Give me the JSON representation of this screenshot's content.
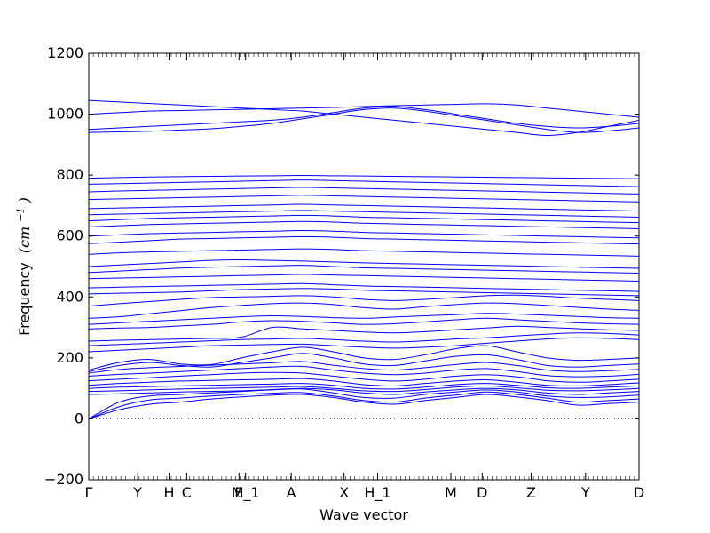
{
  "chart_data": {
    "type": "line",
    "title": "",
    "xlabel": "Wave vector",
    "ylabel": "Frequency",
    "ylabel_unit": "(cm",
    "ylabel_unit_exp": "−1",
    "ylabel_unit_close": ")",
    "ylim": [
      -200,
      1200
    ],
    "yticks": [
      -200,
      0,
      200,
      400,
      600,
      800,
      1000,
      1200
    ],
    "xlim": [
      0,
      1
    ],
    "grid": false,
    "legend": "none",
    "line_color": "#0000ff",
    "zero_line_color": "#000000",
    "high_symmetry_points": [
      {
        "label": "Γ",
        "x": 0.0
      },
      {
        "label": "Y",
        "x": 0.089
      },
      {
        "label": "H",
        "x": 0.146
      },
      {
        "label": "C",
        "x": 0.178
      },
      {
        "label": "E",
        "x": 0.273
      },
      {
        "label": "M_1",
        "x": 0.285
      },
      {
        "label": "A",
        "x": 0.368
      },
      {
        "label": "X",
        "x": 0.464
      },
      {
        "label": "H_1",
        "x": 0.525
      },
      {
        "label": "M",
        "x": 0.658
      },
      {
        "label": "D",
        "x": 0.715
      },
      {
        "label": "Z",
        "x": 0.804
      },
      {
        "label": "Y",
        "x": 0.903
      },
      {
        "label": "D",
        "x": 1.0
      }
    ],
    "series": [
      {
        "values": [
          0,
          30,
          48,
          55,
          65,
          72,
          78,
          80,
          70,
          55,
          48,
          60,
          70,
          80,
          72,
          60,
          45,
          50,
          55
        ]
      },
      {
        "values": [
          0,
          40,
          62,
          68,
          75,
          80,
          84,
          86,
          75,
          60,
          55,
          68,
          78,
          88,
          80,
          68,
          55,
          60,
          65
        ]
      },
      {
        "values": [
          0,
          55,
          75,
          80,
          85,
          90,
          95,
          98,
          85,
          70,
          68,
          80,
          88,
          95,
          88,
          75,
          70,
          72,
          78
        ]
      },
      {
        "values": [
          80,
          82,
          85,
          88,
          90,
          92,
          96,
          100,
          95,
          85,
          80,
          88,
          95,
          100,
          95,
          85,
          80,
          85,
          90
        ]
      },
      {
        "values": [
          90,
          92,
          95,
          98,
          100,
          102,
          104,
          106,
          100,
          92,
          90,
          96,
          104,
          108,
          102,
          94,
          92,
          95,
          100
        ]
      },
      {
        "values": [
          100,
          104,
          106,
          108,
          110,
          112,
          114,
          116,
          110,
          100,
          98,
          104,
          112,
          116,
          110,
          102,
          100,
          104,
          108
        ]
      },
      {
        "values": [
          110,
          116,
          120,
          124,
          126,
          128,
          130,
          132,
          124,
          112,
          108,
          116,
          124,
          128,
          120,
          110,
          108,
          112,
          118
        ]
      },
      {
        "values": [
          125,
          130,
          135,
          140,
          145,
          150,
          152,
          150,
          140,
          130,
          124,
          130,
          140,
          145,
          138,
          125,
          120,
          124,
          130
        ]
      },
      {
        "values": [
          140,
          146,
          150,
          155,
          160,
          165,
          170,
          172,
          160,
          150,
          145,
          150,
          160,
          165,
          155,
          142,
          138,
          140,
          146
        ]
      },
      {
        "values": [
          150,
          162,
          168,
          172,
          176,
          180,
          184,
          188,
          176,
          165,
          160,
          168,
          178,
          185,
          175,
          160,
          155,
          158,
          162
        ]
      },
      {
        "values": [
          155,
          175,
          185,
          175,
          170,
          185,
          200,
          215,
          200,
          180,
          175,
          190,
          205,
          210,
          195,
          175,
          170,
          175,
          180
        ]
      },
      {
        "values": [
          160,
          185,
          195,
          180,
          178,
          200,
          220,
          235,
          220,
          200,
          195,
          210,
          230,
          240,
          220,
          200,
          192,
          195,
          200
        ]
      },
      {
        "values": [
          220,
          225,
          230,
          235,
          240,
          242,
          244,
          245,
          240,
          235,
          232,
          235,
          240,
          248,
          255,
          262,
          266,
          264,
          260
        ]
      },
      {
        "values": [
          240,
          244,
          248,
          252,
          256,
          260,
          262,
          264,
          260,
          255,
          252,
          256,
          262,
          266,
          272,
          278,
          282,
          280,
          275
        ]
      },
      {
        "values": [
          255,
          258,
          260,
          262,
          264,
          268,
          300,
          295,
          290,
          285,
          282,
          286,
          292,
          298,
          304,
          300,
          296,
          292,
          290
        ]
      },
      {
        "values": [
          295,
          298,
          300,
          305,
          310,
          318,
          322,
          320,
          315,
          310,
          312,
          318,
          325,
          330,
          325,
          320,
          315,
          312,
          310
        ]
      },
      {
        "values": [
          310,
          315,
          320,
          325,
          330,
          335,
          338,
          336,
          332,
          330,
          334,
          338,
          342,
          346,
          344,
          340,
          336,
          332,
          330
        ]
      },
      {
        "values": [
          330,
          335,
          345,
          355,
          365,
          372,
          378,
          380,
          375,
          365,
          360,
          368,
          375,
          380,
          378,
          372,
          366,
          360,
          356
        ]
      },
      {
        "values": [
          370,
          378,
          385,
          392,
          398,
          400,
          402,
          404,
          400,
          392,
          388,
          392,
          398,
          404,
          406,
          402,
          396,
          392,
          388
        ]
      },
      {
        "values": [
          410,
          412,
          414,
          416,
          420,
          424,
          426,
          428,
          426,
          422,
          420,
          418,
          416,
          414,
          412,
          410,
          408,
          406,
          404
        ]
      },
      {
        "values": [
          430,
          432,
          434,
          436,
          438,
          440,
          442,
          444,
          440,
          436,
          434,
          432,
          430,
          428,
          426,
          424,
          422,
          420,
          418
        ]
      },
      {
        "values": [
          460,
          462,
          464,
          466,
          468,
          470,
          472,
          474,
          472,
          470,
          468,
          466,
          464,
          462,
          460,
          458,
          456,
          454,
          452
        ]
      },
      {
        "values": [
          480,
          485,
          490,
          495,
          498,
          500,
          502,
          504,
          500,
          496,
          494,
          492,
          490,
          488,
          486,
          484,
          482,
          480,
          478
        ]
      },
      {
        "values": [
          500,
          505,
          510,
          515,
          520,
          522,
          520,
          518,
          515,
          512,
          510,
          508,
          506,
          504,
          502,
          500,
          498,
          496,
          494
        ]
      },
      {
        "values": [
          540,
          545,
          548,
          550,
          552,
          554,
          556,
          558,
          556,
          552,
          550,
          548,
          546,
          544,
          542,
          540,
          538,
          536,
          534
        ]
      },
      {
        "values": [
          575,
          580,
          585,
          590,
          592,
          594,
          596,
          598,
          596,
          592,
          590,
          588,
          586,
          584,
          582,
          580,
          578,
          576,
          574
        ]
      },
      {
        "values": [
          600,
          604,
          608,
          610,
          612,
          614,
          616,
          618,
          616,
          612,
          610,
          608,
          606,
          604,
          602,
          600,
          598,
          596,
          594
        ]
      },
      {
        "values": [
          630,
          634,
          638,
          640,
          642,
          644,
          646,
          648,
          646,
          642,
          640,
          638,
          636,
          634,
          632,
          630,
          628,
          626,
          624
        ]
      },
      {
        "values": [
          650,
          654,
          658,
          660,
          662,
          664,
          666,
          668,
          666,
          662,
          660,
          658,
          656,
          654,
          652,
          650,
          648,
          646,
          644
        ]
      },
      {
        "values": [
          670,
          672,
          674,
          676,
          678,
          680,
          682,
          684,
          682,
          680,
          678,
          676,
          674,
          672,
          670,
          668,
          666,
          664,
          662
        ]
      },
      {
        "values": [
          690,
          692,
          694,
          696,
          698,
          700,
          702,
          704,
          702,
          700,
          698,
          696,
          694,
          692,
          690,
          688,
          686,
          684,
          682
        ]
      },
      {
        "values": [
          720,
          722,
          724,
          726,
          728,
          730,
          732,
          734,
          732,
          730,
          728,
          726,
          724,
          722,
          720,
          718,
          716,
          714,
          712
        ]
      },
      {
        "values": [
          745,
          748,
          750,
          752,
          754,
          756,
          758,
          760,
          758,
          756,
          754,
          752,
          750,
          748,
          746,
          744,
          742,
          740,
          738
        ]
      },
      {
        "values": [
          770,
          772,
          774,
          776,
          778,
          780,
          782,
          784,
          782,
          780,
          778,
          776,
          774,
          772,
          770,
          768,
          766,
          764,
          762
        ]
      },
      {
        "values": [
          790,
          792,
          794,
          795,
          796,
          797,
          798,
          799,
          798,
          797,
          796,
          795,
          794,
          793,
          792,
          791,
          790,
          789,
          788
        ]
      },
      {
        "values": [
          940,
          942,
          944,
          948,
          952,
          960,
          970,
          985,
          1000,
          1015,
          1020,
          1010,
          995,
          980,
          965,
          950,
          940,
          945,
          955
        ]
      },
      {
        "values": [
          950,
          955,
          960,
          965,
          970,
          975,
          980,
          990,
          1005,
          1020,
          1025,
          1015,
          1000,
          985,
          970,
          960,
          955,
          960,
          970
        ]
      },
      {
        "values": [
          1000,
          1005,
          1010,
          1012,
          1014,
          1016,
          1018,
          1020,
          1022,
          1025,
          1028,
          1030,
          1032,
          1034,
          1030,
          1020,
          1010,
          1000,
          990
        ]
      },
      {
        "values": [
          1045,
          1040,
          1035,
          1030,
          1025,
          1020,
          1015,
          1010,
          1000,
          990,
          980,
          970,
          960,
          950,
          940,
          930,
          940,
          960,
          980
        ]
      }
    ]
  }
}
